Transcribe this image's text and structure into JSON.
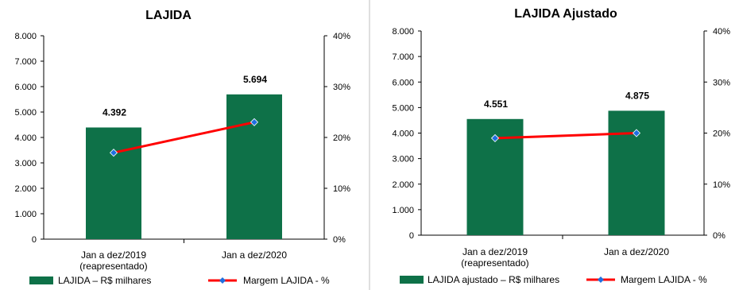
{
  "chart_data": [
    {
      "type": "bar",
      "title": "LAJIDA",
      "categories": [
        [
          "Jan a dez/2019",
          "(reapresentado)"
        ],
        [
          "Jan a dez/2020"
        ]
      ],
      "series": [
        {
          "name": "LAJIDA – R$ milhares",
          "type": "bar",
          "axis": "left",
          "values": [
            4392,
            5694
          ],
          "labels": [
            "4.392",
            "5.694"
          ]
        },
        {
          "name": "Margem LAJIDA - %",
          "type": "line",
          "axis": "right",
          "values": [
            17,
            23
          ]
        }
      ],
      "ylim": [
        0,
        8000
      ],
      "y_ticks": [
        "0",
        "1.000",
        "2.000",
        "3.000",
        "4.000",
        "5.000",
        "6.000",
        "7.000",
        "8.000"
      ],
      "y2lim": [
        0,
        40
      ],
      "y2_ticks": [
        "0%",
        "10%",
        "20%",
        "30%",
        "40%"
      ],
      "legend_position": "bottom",
      "colors": {
        "bar": "#0e7148",
        "line": "#ff0000",
        "marker": "#1f6fe0"
      }
    },
    {
      "type": "bar",
      "title": "LAJIDA Ajustado",
      "categories": [
        [
          "Jan a dez/2019",
          "(reapresentado)"
        ],
        [
          "Jan a dez/2020"
        ]
      ],
      "series": [
        {
          "name": "LAJIDA ajustado – R$ milhares",
          "type": "bar",
          "axis": "left",
          "values": [
            4551,
            4875
          ],
          "labels": [
            "4.551",
            "4.875"
          ]
        },
        {
          "name": "Margem LAJIDA - %",
          "type": "line",
          "axis": "right",
          "values": [
            19,
            20
          ]
        }
      ],
      "ylim": [
        0,
        8000
      ],
      "y_ticks": [
        "0",
        "1.000",
        "2.000",
        "3.000",
        "4.000",
        "5.000",
        "6.000",
        "7.000",
        "8.000"
      ],
      "y2lim": [
        0,
        40
      ],
      "y2_ticks": [
        "0%",
        "10%",
        "20%",
        "30%",
        "40%"
      ],
      "legend_position": "bottom",
      "colors": {
        "bar": "#0e7148",
        "line": "#ff0000",
        "marker": "#1f6fe0"
      }
    }
  ]
}
